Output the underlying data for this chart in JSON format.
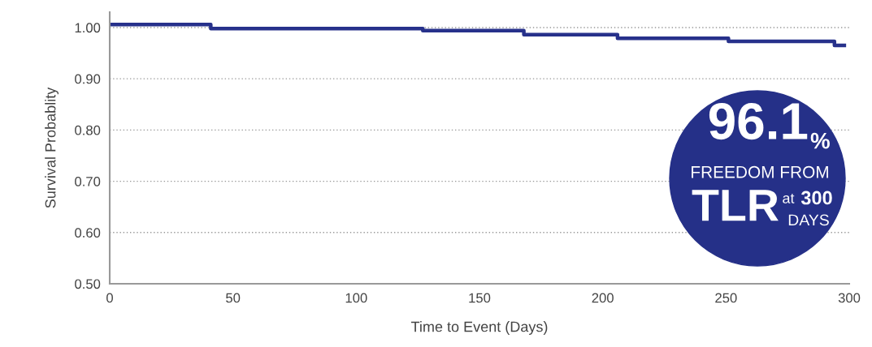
{
  "chart_data": {
    "type": "step",
    "xlabel": "Time to Event (Days)",
    "ylabel": "Survival Probablity",
    "x": [
      0,
      41,
      127,
      168,
      206,
      251,
      294,
      298
    ],
    "series": [
      {
        "color": "#27318b",
        "values": [
          1.006,
          0.998,
          0.994,
          0.986,
          0.979,
          0.973,
          0.965,
          0.965
        ]
      }
    ],
    "xlim": [
      0,
      300
    ],
    "xticks": [
      0,
      50,
      100,
      150,
      200,
      250,
      300
    ],
    "ylim": [
      0.5,
      1.03
    ],
    "yticks": [
      {
        "value": 0.5,
        "label": "0.50"
      },
      {
        "value": 0.6,
        "label": "0.60"
      },
      {
        "value": 0.7,
        "label": "0.70"
      },
      {
        "value": 0.8,
        "label": "0.80"
      },
      {
        "value": 0.9,
        "label": "0.90"
      },
      {
        "value": 1.0,
        "label": "1.00"
      }
    ],
    "grid": "y",
    "annotations": [
      "96.1",
      "%",
      "FREEDOM FROM",
      "TLR",
      "at",
      "300",
      "DAYS"
    ]
  }
}
